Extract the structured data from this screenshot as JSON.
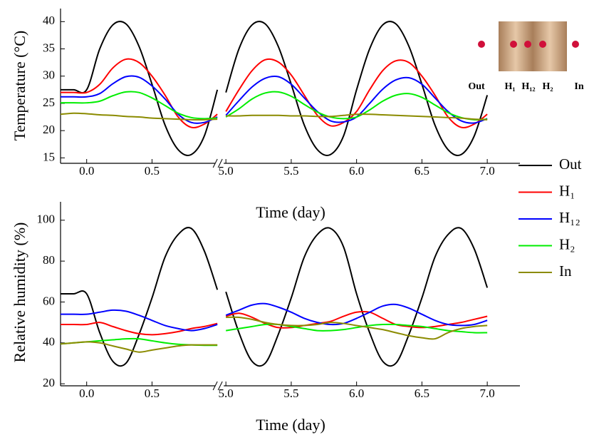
{
  "chart_data": [
    {
      "type": "line",
      "xlabel": "Time (day)",
      "ylabel": "Temperature (°C)",
      "x": [
        -0.2,
        -0.1,
        0,
        0.1,
        0.2,
        0.3,
        0.4,
        0.5,
        0.6,
        0.7,
        0.8,
        0.9,
        1.0,
        5.0,
        5.1,
        5.2,
        5.3,
        5.4,
        5.5,
        5.6,
        5.7,
        5.8,
        5.9,
        6.0,
        6.1,
        6.2,
        6.3,
        6.4,
        6.5,
        6.6,
        6.7,
        6.8,
        6.9,
        7.0
      ],
      "xlim": [
        -0.2,
        7.25
      ],
      "x_break": [
        1.0,
        5.0
      ],
      "xticks": [
        {
          "value": 0,
          "label": "0.0"
        },
        0.5,
        {
          "value": 5,
          "label": "5.0"
        },
        5.5,
        {
          "value": 6,
          "label": "6.0"
        },
        6.5,
        {
          "value": 7,
          "label": "7.0"
        }
      ],
      "ylim": [
        14,
        42.4
      ],
      "yticks": [
        15,
        20,
        25,
        30,
        35,
        40
      ],
      "grid": false,
      "legend": "outside-right",
      "series": [
        {
          "name": "Out",
          "color": "#000000",
          "values": [
            27.5,
            27.5,
            27.5,
            35,
            39.4,
            39.6,
            35.5,
            28.5,
            21,
            16.5,
            15.6,
            19,
            27.5,
            27,
            35,
            39.4,
            39.6,
            35.5,
            28.5,
            21,
            16.5,
            15.6,
            19,
            27.5,
            35,
            39.4,
            39.6,
            35.5,
            28.5,
            21,
            16.5,
            15.6,
            19,
            26.5
          ]
        },
        {
          "name": "H₁",
          "color": "#ff0000",
          "values": [
            27,
            27,
            27,
            28.5,
            31.5,
            33.1,
            32.5,
            30,
            26.5,
            22.5,
            20.6,
            21.2,
            23,
            23.5,
            27.5,
            31,
            33,
            32.6,
            30.2,
            26.5,
            22.8,
            20.9,
            21.5,
            23.5,
            27.5,
            31,
            32.8,
            32.5,
            30,
            26.5,
            22.5,
            20.6,
            21.2,
            23
          ]
        },
        {
          "name": "H₁₂",
          "color": "#0000ff",
          "values": [
            26.2,
            26.2,
            26.2,
            26.8,
            28.6,
            29.9,
            29.8,
            28.2,
            25.8,
            23,
            21.5,
            21.5,
            22.5,
            22.8,
            25.5,
            28,
            29.6,
            29.9,
            28.5,
            26,
            23.5,
            21.8,
            21.6,
            22.5,
            25,
            27.6,
            29.3,
            29.7,
            28.5,
            26,
            23.5,
            21.8,
            21.4,
            22.2
          ]
        },
        {
          "name": "H₂",
          "color": "#00ee00",
          "values": [
            25.1,
            25.1,
            25.1,
            25.4,
            26.4,
            27.1,
            27,
            26,
            24.6,
            23.2,
            22.4,
            22.2,
            22.3,
            22.5,
            24,
            25.8,
            26.9,
            27.1,
            26.3,
            24.8,
            23.4,
            22.5,
            22.2,
            22.5,
            23.8,
            25.4,
            26.5,
            26.8,
            26.1,
            24.7,
            23.3,
            22.4,
            22,
            22.1
          ]
        },
        {
          "name": "In",
          "color": "#8b8b00",
          "values": [
            23,
            23.2,
            23.1,
            22.9,
            22.8,
            22.6,
            22.5,
            22.3,
            22.2,
            22.1,
            22,
            22,
            22.1,
            22.7,
            22.7,
            22.8,
            22.8,
            22.8,
            22.7,
            22.7,
            22.6,
            22.6,
            22.8,
            23,
            23,
            22.9,
            22.8,
            22.7,
            22.6,
            22.5,
            22.4,
            22.3,
            22.1,
            22
          ]
        }
      ],
      "inset": {
        "labels": [
          "Out",
          "H₁",
          "H₁₂",
          "H₂",
          "In"
        ]
      }
    },
    {
      "type": "line",
      "xlabel": "Time (day)",
      "ylabel": "Relative humidity (%)",
      "x": [
        -0.2,
        -0.1,
        0,
        0.1,
        0.2,
        0.3,
        0.4,
        0.5,
        0.6,
        0.7,
        0.8,
        0.9,
        1.0,
        5.0,
        5.1,
        5.2,
        5.3,
        5.4,
        5.5,
        5.6,
        5.7,
        5.8,
        5.9,
        6.0,
        6.1,
        6.2,
        6.3,
        6.4,
        6.5,
        6.6,
        6.7,
        6.8,
        6.9,
        7.0
      ],
      "xlim": [
        -0.2,
        7.25
      ],
      "x_break": [
        1.0,
        5.0
      ],
      "xticks": [
        {
          "value": 0,
          "label": "0.0"
        },
        0.5,
        {
          "value": 5,
          "label": "5.0"
        },
        5.5,
        {
          "value": 6,
          "label": "6.0"
        },
        6.5,
        {
          "value": 7,
          "label": "7.0"
        }
      ],
      "ylim": [
        19,
        109
      ],
      "yticks": [
        20,
        40,
        60,
        80,
        100
      ],
      "grid": false,
      "series": [
        {
          "color": "#000000",
          "values": [
            64,
            64,
            64,
            45,
            31,
            30,
            44,
            62,
            82,
            93,
            96,
            85,
            66,
            65,
            45,
            31,
            30,
            44,
            62,
            82,
            93,
            96,
            87,
            64,
            45,
            31,
            30,
            44,
            62,
            82,
            93,
            96,
            86,
            67
          ]
        },
        {
          "color": "#ff0000",
          "values": [
            49,
            49,
            49,
            50,
            48,
            46,
            44.5,
            44,
            44.5,
            45.5,
            47,
            48,
            49.5,
            53,
            54.5,
            52.5,
            49.5,
            47.5,
            47.5,
            48.5,
            49.5,
            50.5,
            53,
            55,
            55,
            52,
            49,
            48,
            47.5,
            48,
            49,
            50,
            51.5,
            53
          ]
        },
        {
          "color": "#0000ff",
          "values": [
            54,
            54,
            54,
            55,
            56,
            55.5,
            53.5,
            51,
            48.5,
            47,
            46,
            47,
            49,
            53.5,
            56,
            58.5,
            59.2,
            57.5,
            55,
            52,
            50,
            49,
            49.5,
            52,
            55,
            58,
            58.8,
            57,
            54,
            51,
            49,
            48.5,
            49,
            51
          ]
        },
        {
          "color": "#00ee00",
          "values": [
            39.5,
            40,
            40.5,
            41,
            41.5,
            42,
            42,
            41,
            40,
            39.3,
            39,
            38.8,
            38.8,
            46,
            47,
            48,
            49,
            49,
            48,
            47,
            46,
            46,
            46.5,
            47.5,
            48.5,
            49,
            49,
            48.5,
            48,
            47,
            46,
            45.5,
            45,
            45
          ]
        },
        {
          "color": "#8b8b00",
          "values": [
            39.5,
            40,
            40.5,
            40,
            38.5,
            37,
            35.5,
            36.5,
            37.5,
            38.5,
            39,
            39,
            39,
            52.5,
            52.5,
            51.5,
            50,
            49,
            48.5,
            48.5,
            49,
            50,
            49.5,
            48.5,
            47.5,
            46.5,
            45,
            43.5,
            42.5,
            42,
            45,
            47,
            48,
            48.5
          ]
        }
      ]
    }
  ]
}
